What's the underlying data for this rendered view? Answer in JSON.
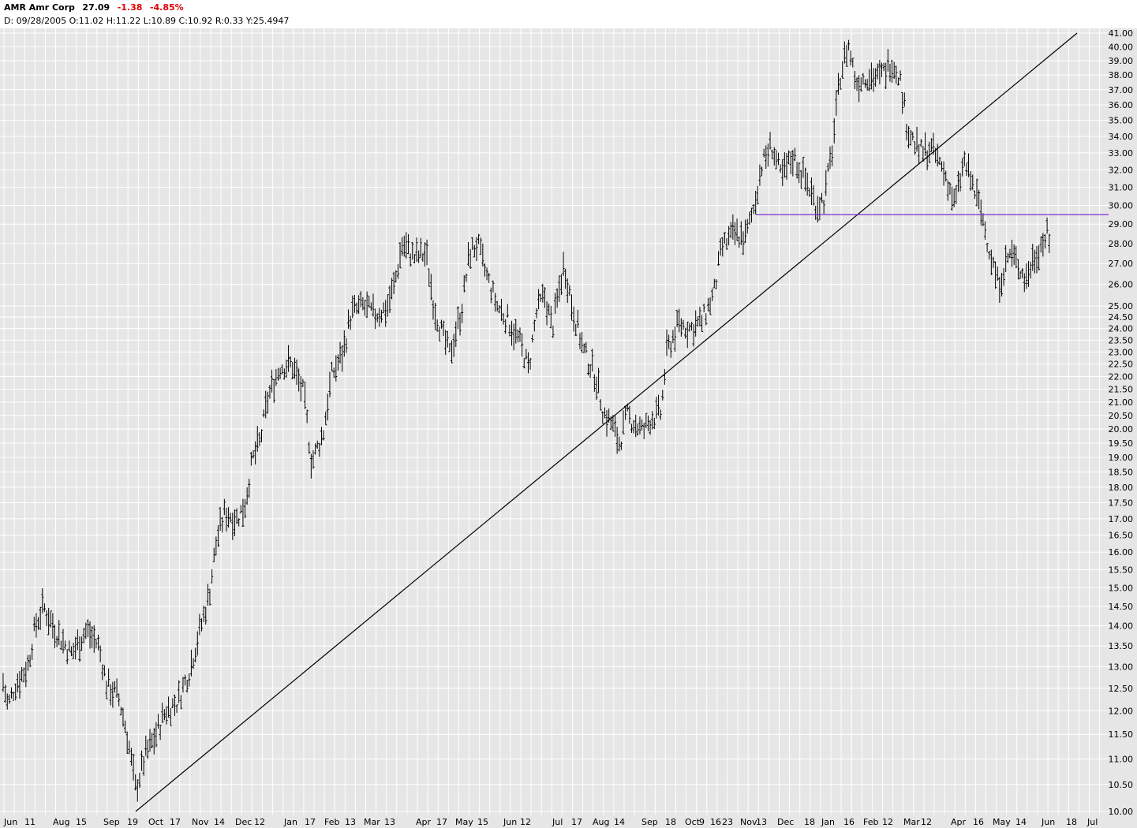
{
  "header": {
    "symbol_name": "AMR Amr Corp",
    "last": "27.09",
    "change": "-1.38",
    "change_pct": "-4.85%",
    "ohlc_line": "D: 09/28/2005 O:11.02 H:11.22 L:10.89 C:10.92 R:0.33 Y:25.4947"
  },
  "colors": {
    "background": "#e6e6e6",
    "grid": "#ffffff",
    "bars": "#000000",
    "trendline": "#000000",
    "horizontal_line": "#7a2ed0",
    "negative": "#e00000"
  },
  "chart_data": {
    "type": "bar",
    "subtype": "ohlc",
    "scale": "log",
    "ylim": [
      10.0,
      41.0
    ],
    "y_ticks": [
      "10.00",
      "10.50",
      "11.00",
      "11.50",
      "12.00",
      "12.50",
      "13.00",
      "13.50",
      "14.00",
      "14.50",
      "15.00",
      "15.50",
      "16.00",
      "16.50",
      "17.00",
      "17.50",
      "18.00",
      "18.50",
      "19.00",
      "19.50",
      "20.00",
      "20.50",
      "21.00",
      "21.50",
      "22.00",
      "22.50",
      "23.00",
      "23.50",
      "24.00",
      "24.50",
      "25.00",
      "26.00",
      "27.00",
      "28.00",
      "29.00",
      "30.00",
      "31.00",
      "32.00",
      "33.00",
      "34.00",
      "35.00",
      "36.00",
      "37.00",
      "38.00",
      "39.00",
      "40.00",
      "41.00"
    ],
    "x_labels": [
      "Jun",
      "11",
      "Aug",
      "15",
      "Sep",
      "19",
      "Oct",
      "17",
      "Nov",
      "14",
      "Dec",
      "12",
      "Jan",
      "17",
      "Feb",
      "13",
      "Mar",
      "13",
      "Apr",
      "17",
      "May",
      "15",
      "Jun",
      "12",
      "Jul",
      "17",
      "Aug",
      "14",
      "Sep",
      "18",
      "Oct",
      "9",
      "16",
      "23",
      "Nov",
      "13",
      "Dec",
      "18",
      "Jan",
      "16",
      "Feb",
      "12",
      "Mar",
      "12",
      "Apr",
      "16",
      "May",
      "14",
      "Jun",
      "18",
      "Jul"
    ],
    "grid": true,
    "price_path": [
      [
        0,
        13.0
      ],
      [
        10,
        12.1
      ],
      [
        20,
        12.6
      ],
      [
        35,
        13.0
      ],
      [
        45,
        14.0
      ],
      [
        55,
        14.5
      ],
      [
        70,
        13.9
      ],
      [
        90,
        13.3
      ],
      [
        110,
        13.9
      ],
      [
        125,
        13.5
      ],
      [
        135,
        12.6
      ],
      [
        150,
        12.3
      ],
      [
        160,
        11.6
      ],
      [
        172,
        10.4
      ],
      [
        185,
        11.1
      ],
      [
        195,
        11.4
      ],
      [
        210,
        12.0
      ],
      [
        225,
        12.2
      ],
      [
        240,
        12.9
      ],
      [
        255,
        14.0
      ],
      [
        265,
        14.8
      ],
      [
        275,
        16.4
      ],
      [
        285,
        17.2
      ],
      [
        300,
        17.0
      ],
      [
        310,
        17.4
      ],
      [
        320,
        18.9
      ],
      [
        330,
        19.6
      ],
      [
        340,
        21.2
      ],
      [
        355,
        22.4
      ],
      [
        370,
        22.5
      ],
      [
        385,
        21.3
      ],
      [
        395,
        18.8
      ],
      [
        410,
        19.9
      ],
      [
        420,
        22.0
      ],
      [
        435,
        23.0
      ],
      [
        445,
        24.7
      ],
      [
        460,
        25.0
      ],
      [
        475,
        24.6
      ],
      [
        490,
        24.9
      ],
      [
        500,
        26.0
      ],
      [
        510,
        28.0
      ],
      [
        525,
        27.3
      ],
      [
        540,
        27.5
      ],
      [
        550,
        25.0
      ],
      [
        560,
        23.8
      ],
      [
        570,
        22.9
      ],
      [
        585,
        24.8
      ],
      [
        595,
        27.5
      ],
      [
        605,
        28.0
      ],
      [
        615,
        26.6
      ],
      [
        630,
        25.0
      ],
      [
        645,
        24.3
      ],
      [
        660,
        23.3
      ],
      [
        670,
        22.3
      ],
      [
        680,
        24.7
      ],
      [
        690,
        25.5
      ],
      [
        700,
        24.0
      ],
      [
        715,
        27.0
      ],
      [
        725,
        25.0
      ],
      [
        740,
        23.0
      ],
      [
        755,
        22.0
      ],
      [
        765,
        20.6
      ],
      [
        775,
        20.2
      ],
      [
        785,
        19.5
      ],
      [
        795,
        20.5
      ],
      [
        805,
        20.2
      ],
      [
        815,
        19.9
      ],
      [
        825,
        20.4
      ],
      [
        838,
        20.6
      ],
      [
        845,
        23.0
      ],
      [
        860,
        24.2
      ],
      [
        875,
        24.0
      ],
      [
        890,
        24.3
      ],
      [
        905,
        25.6
      ],
      [
        915,
        27.8
      ],
      [
        930,
        28.5
      ],
      [
        945,
        28.3
      ],
      [
        955,
        29.8
      ],
      [
        965,
        32.2
      ],
      [
        978,
        33.5
      ],
      [
        990,
        31.5
      ],
      [
        1005,
        32.8
      ],
      [
        1020,
        31.5
      ],
      [
        1035,
        30.0
      ],
      [
        1045,
        30.4
      ],
      [
        1055,
        33.3
      ],
      [
        1065,
        38.0
      ],
      [
        1075,
        40.2
      ],
      [
        1085,
        37.5
      ],
      [
        1100,
        38.0
      ],
      [
        1115,
        37.8
      ],
      [
        1130,
        39.0
      ],
      [
        1140,
        38.0
      ],
      [
        1150,
        34.5
      ],
      [
        1165,
        33.0
      ],
      [
        1180,
        33.2
      ],
      [
        1190,
        32.5
      ],
      [
        1200,
        31.5
      ],
      [
        1210,
        30.0
      ],
      [
        1222,
        32.5
      ],
      [
        1235,
        30.8
      ],
      [
        1245,
        29.4
      ],
      [
        1255,
        27.5
      ],
      [
        1265,
        26.0
      ],
      [
        1280,
        27.5
      ],
      [
        1290,
        27.0
      ],
      [
        1300,
        26.2
      ],
      [
        1310,
        27.3
      ],
      [
        1320,
        28.0
      ],
      [
        1328,
        28.5
      ],
      [
        1332,
        27.1
      ]
    ],
    "trendlines": [
      {
        "from": [
          172,
          10.0
        ],
        "to": [
          1365,
          41.0
        ]
      },
      {
        "from": [
          958,
          29.5
        ],
        "to": [
          1405,
          29.5
        ],
        "style": "horizontal"
      }
    ]
  }
}
